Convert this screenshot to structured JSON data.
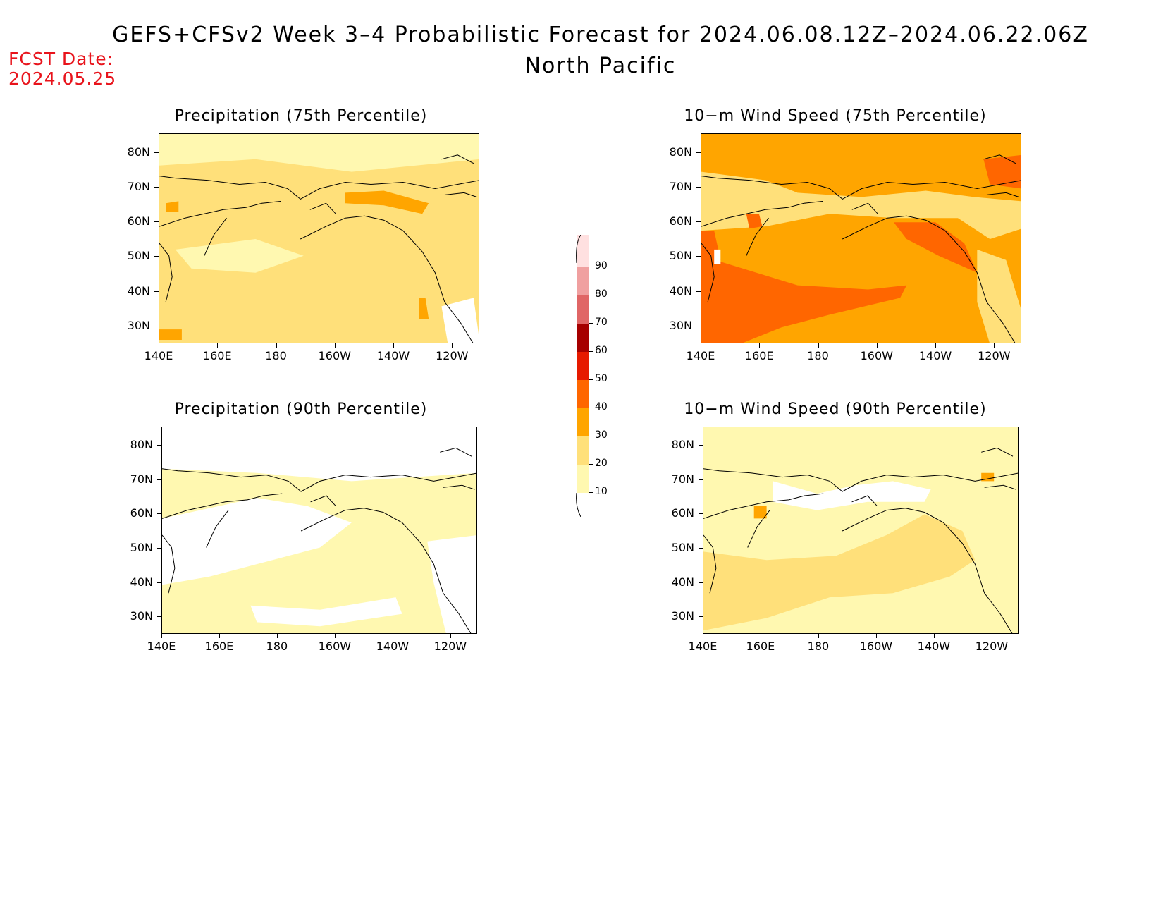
{
  "title": "GEFS+CFSv2 Week 3–4 Probabilistic Forecast for 2024.06.08.12Z–2024.06.22.06Z",
  "subtitle": "North Pacific",
  "fcst_date_label": "FCST Date:",
  "fcst_date_value": "2024.05.25",
  "lat_labels": [
    "80N",
    "70N",
    "60N",
    "50N",
    "40N",
    "30N"
  ],
  "lon_labels": [
    "140E",
    "160E",
    "180",
    "160W",
    "140W",
    "120W"
  ],
  "panels": [
    {
      "id": "precip75",
      "title": "Precipitation (75th Percentile)",
      "base_level": "20-30",
      "variant": "precip75"
    },
    {
      "id": "wind75",
      "title": "10−m Wind Speed (75th Percentile)",
      "base_level": "30-40",
      "variant": "wind75"
    },
    {
      "id": "precip90",
      "title": "Precipitation (90th Percentile)",
      "base_level": "10-20",
      "variant": "precip90"
    },
    {
      "id": "wind90",
      "title": "10−m Wind Speed (90th Percentile)",
      "base_level": "10-20",
      "variant": "wind90"
    }
  ],
  "colorbar": {
    "levels": [
      "90",
      "80",
      "70",
      "60",
      "50",
      "40",
      "30",
      "20",
      "10"
    ],
    "colors": {
      "10-20": "#fff8b0",
      "20-30": "#ffe07a",
      "30-40": "#ffa500",
      "40-50": "#ff6600",
      "50-60": "#e61a00",
      "60-70": "#a60000",
      "70-80": "#e06666",
      "80-90": "#f0a0a0",
      "90-100": "#ffe0e0"
    }
  }
}
